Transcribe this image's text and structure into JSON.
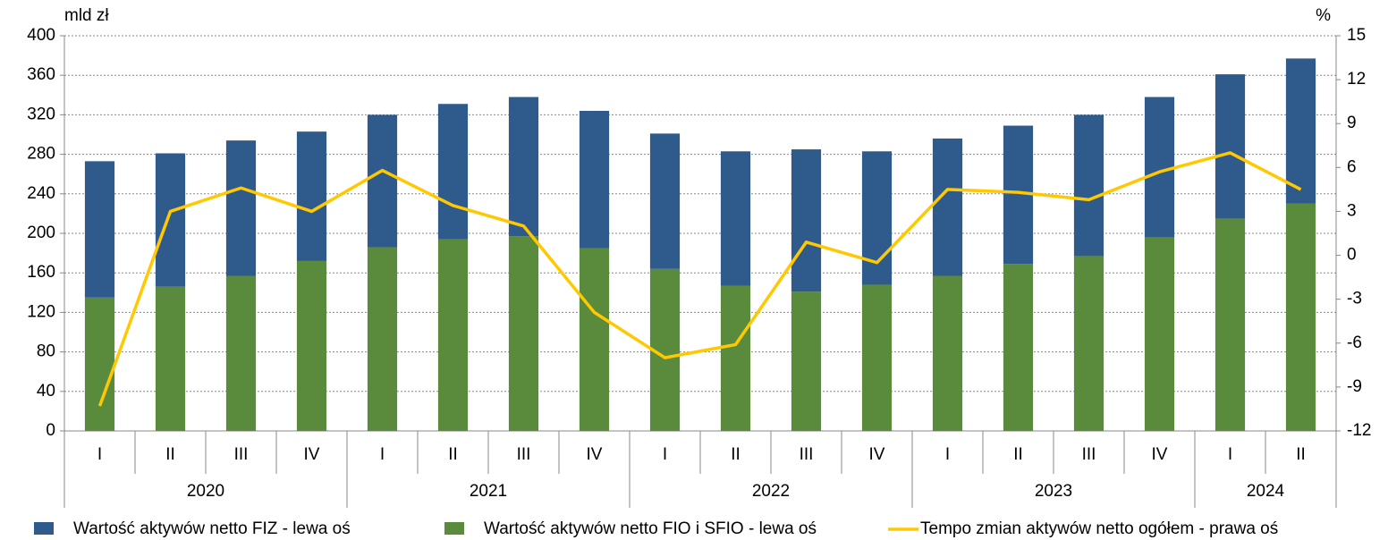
{
  "chart_data": {
    "type": "bar",
    "y_label": "mld zł",
    "y2_label": "%",
    "categories": [
      "I",
      "II",
      "III",
      "IV",
      "I",
      "II",
      "III",
      "IV",
      "I",
      "II",
      "III",
      "IV",
      "I",
      "II",
      "III",
      "IV",
      "I",
      "II"
    ],
    "year_groups": [
      {
        "label": "2020",
        "count": 4
      },
      {
        "label": "2021",
        "count": 4
      },
      {
        "label": "2022",
        "count": 4
      },
      {
        "label": "2023",
        "count": 4
      },
      {
        "label": "2024",
        "count": 2
      }
    ],
    "series": [
      {
        "name": "Wartość aktywów netto FIZ - lewa oś",
        "type": "bar",
        "color": "#2e5a8c",
        "values": [
          138,
          135,
          137,
          131,
          134,
          137,
          141,
          139,
          137,
          136,
          144,
          135,
          139,
          140,
          143,
          142,
          146,
          147
        ]
      },
      {
        "name": "Wartość aktywów netto FIO i SFIO - lewa oś",
        "type": "bar",
        "color": "#5a8a3c",
        "values": [
          135,
          146,
          157,
          172,
          186,
          194,
          197,
          185,
          164,
          147,
          141,
          148,
          157,
          169,
          177,
          196,
          215,
          230
        ]
      },
      {
        "name": "Tempo zmian aktywów netto ogółem - prawa oś",
        "type": "line",
        "axis": "y2",
        "color": "#ffc800",
        "values": [
          -10.3,
          3.0,
          4.6,
          3.0,
          5.8,
          3.4,
          2.0,
          -3.9,
          -7.0,
          -6.1,
          0.9,
          -0.5,
          4.5,
          4.3,
          3.8,
          5.7,
          7.0,
          4.5
        ]
      }
    ],
    "ylim": [
      0,
      400
    ],
    "yticks": [
      0,
      40,
      80,
      120,
      160,
      200,
      240,
      280,
      320,
      360,
      400
    ],
    "y2lim": [
      -12,
      15
    ],
    "y2ticks": [
      -12,
      -9,
      -6,
      -3,
      0,
      3,
      6,
      9,
      12,
      15
    ],
    "grid": true
  }
}
